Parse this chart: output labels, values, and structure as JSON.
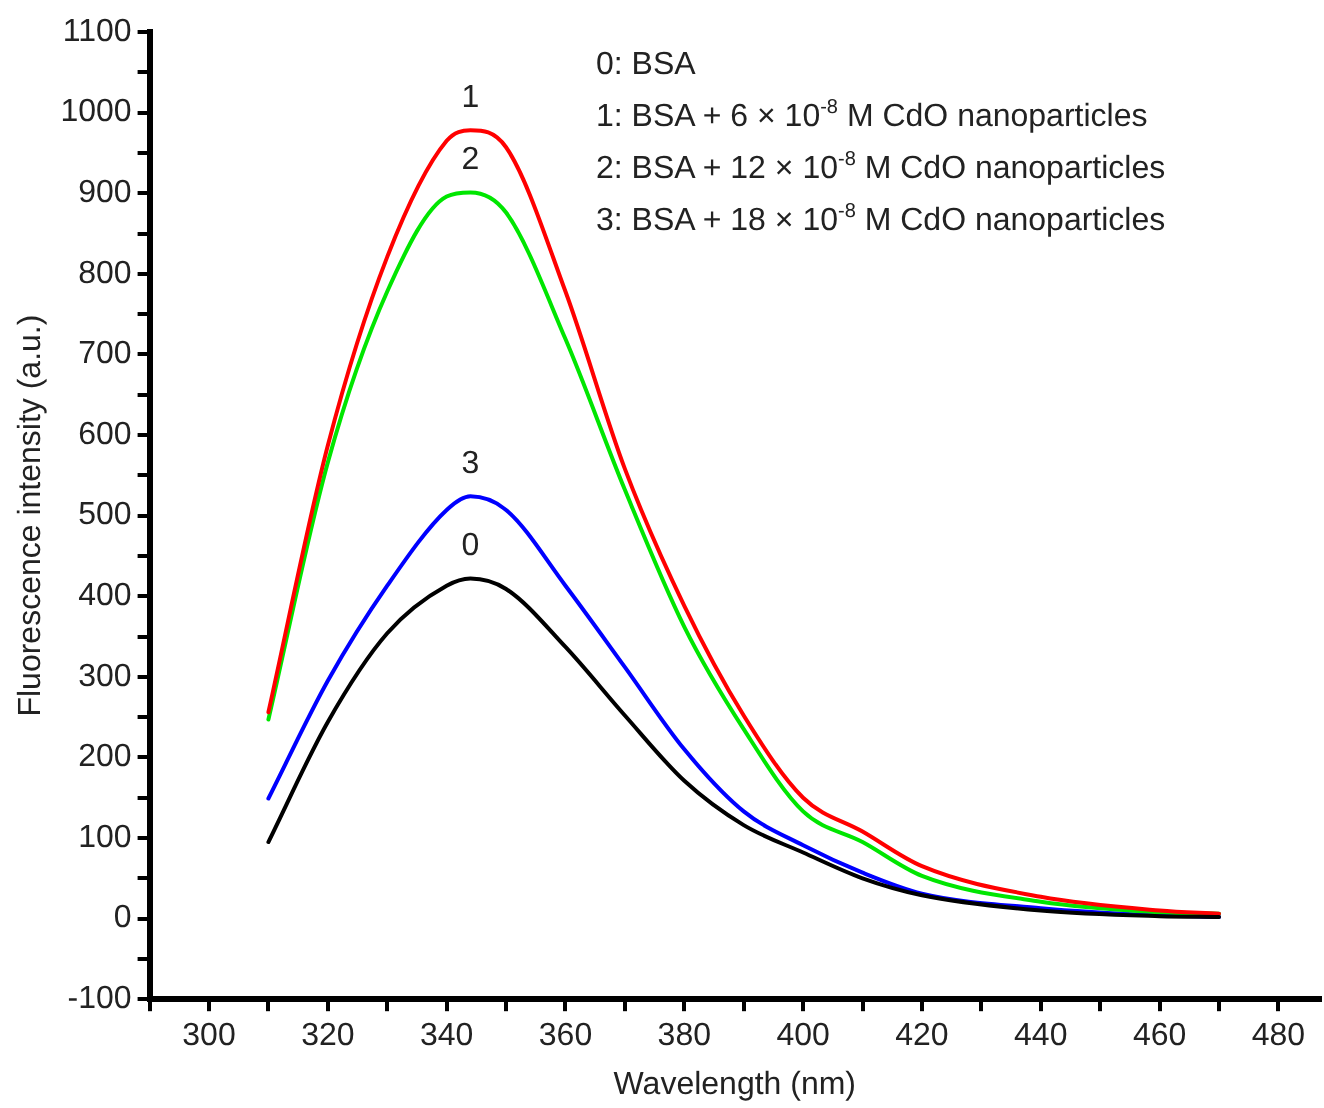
{
  "chart_data": {
    "type": "line",
    "xlabel": "Wavelength (nm)",
    "ylabel": "Fluorescence intensity (a.u.)",
    "x": [
      310,
      320,
      330,
      340,
      344,
      350,
      360,
      370,
      380,
      390,
      400,
      410,
      420,
      440,
      460,
      470
    ],
    "series": [
      {
        "name": "0",
        "color": "#000000",
        "values": [
          95,
          244,
          354,
          413,
          422,
          409,
          337,
          252,
          171,
          116,
          82,
          50,
          29,
          10,
          3,
          2
        ]
      },
      {
        "name": "1",
        "color": "#ff0000",
        "values": [
          256,
          587,
          821,
          965,
          978,
          957,
          778,
          558,
          388,
          252,
          150,
          108,
          65,
          27,
          10,
          6
        ]
      },
      {
        "name": "2",
        "color": "#00e600",
        "values": [
          247,
          566,
          778,
          896,
          901,
          876,
          719,
          532,
          362,
          235,
          133,
          95,
          53,
          21,
          8,
          6
        ]
      },
      {
        "name": "3",
        "color": "#0000ff",
        "values": [
          149,
          295,
          413,
          507,
          524,
          507,
          413,
          312,
          210,
          133,
          91,
          57,
          31,
          13,
          4,
          2
        ]
      }
    ],
    "xlim": [
      290,
      487
    ],
    "ylim": [
      -100,
      1100
    ],
    "xticks": [
      {
        "value": 290,
        "label": null
      },
      300,
      {
        "value": 310,
        "label": null
      },
      320,
      {
        "value": 330,
        "label": null
      },
      340,
      {
        "value": 350,
        "label": null
      },
      360,
      {
        "value": 370,
        "label": null
      },
      380,
      {
        "value": 390,
        "label": null
      },
      400,
      {
        "value": 410,
        "label": null
      },
      420,
      {
        "value": 430,
        "label": null
      },
      440,
      {
        "value": 450,
        "label": null
      },
      460,
      {
        "value": 470,
        "label": null
      },
      480
    ],
    "yticks": [
      -100,
      {
        "value": -50,
        "label": null
      },
      0,
      {
        "value": 50,
        "label": null
      },
      100,
      {
        "value": 150,
        "label": null
      },
      200,
      {
        "value": 250,
        "label": null
      },
      300,
      {
        "value": 350,
        "label": null
      },
      400,
      {
        "value": 450,
        "label": null
      },
      500,
      {
        "value": 550,
        "label": null
      },
      600,
      {
        "value": 650,
        "label": null
      },
      700,
      {
        "value": 750,
        "label": null
      },
      800,
      {
        "value": 850,
        "label": null
      },
      900,
      {
        "value": 950,
        "label": null
      },
      1000,
      {
        "value": 1050,
        "label": null
      },
      1100
    ],
    "annotations": [
      "0: BSA",
      "1: BSA + 6 × 10$^{-8}$ M CdO nanoparticles",
      "2: BSA + 12 × 10$^{-8}$ M CdO nanoparticles",
      "3: BSA + 18 × 10$^{-8}$ M CdO nanoparticles"
    ],
    "marker": "none",
    "line_style": "solid"
  }
}
